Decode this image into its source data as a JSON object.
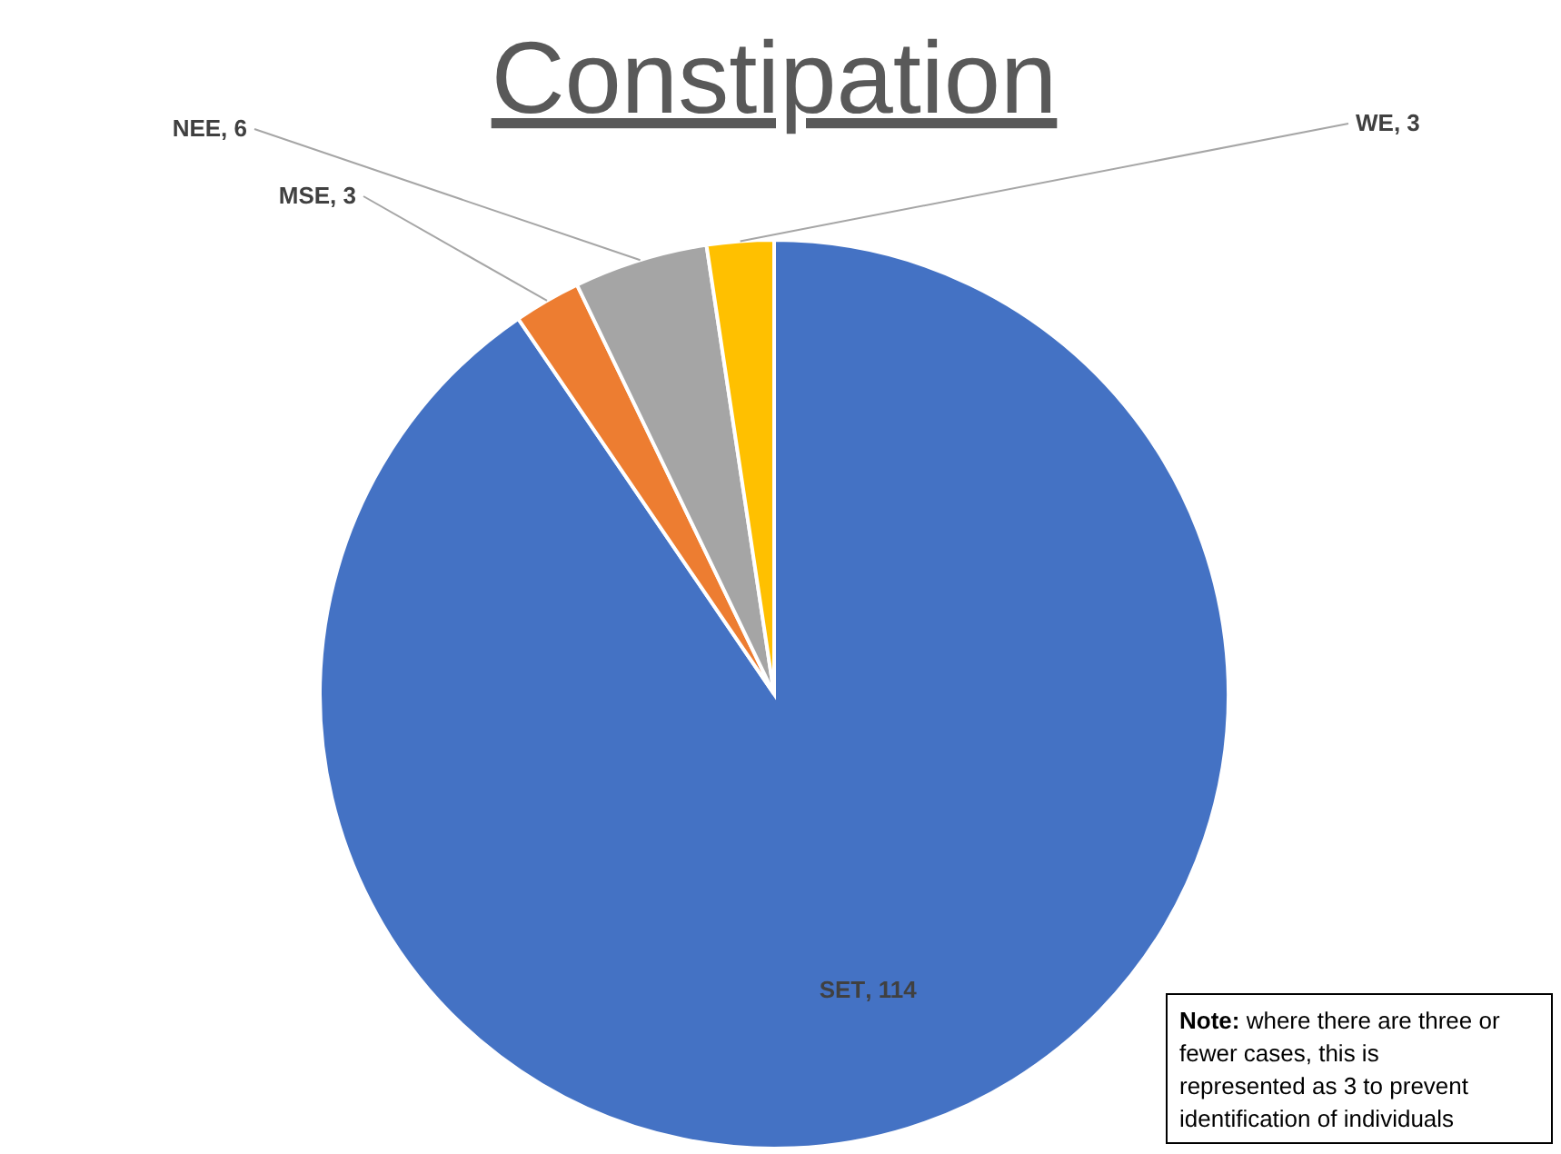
{
  "chart_data": {
    "type": "pie",
    "title": "Constipation",
    "categories": [
      "SET",
      "MSE",
      "NEE",
      "WE"
    ],
    "values": [
      114,
      3,
      6,
      3
    ],
    "colors": [
      "#4472c4",
      "#ed7d31",
      "#a5a5a5",
      "#ffc000"
    ],
    "value_labels": [
      ", 114",
      ", 3",
      ", 6",
      ", 3"
    ],
    "legend": false,
    "annotations": [
      "Note: where there are three or fewer cases, this is represented as 3 to prevent identification of individuals"
    ]
  }
}
